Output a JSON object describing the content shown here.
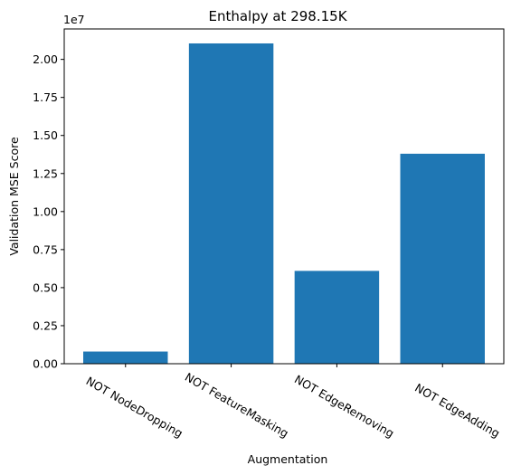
{
  "chart_data": {
    "type": "bar",
    "title": "Enthalpy at 298.15K",
    "xlabel": "Augmentation",
    "ylabel": "Validation MSE Score",
    "y_scale_label": "1e7",
    "categories": [
      "NOT NodeDropping",
      "NOT FeatureMasking",
      "NOT EdgeRemoving",
      "NOT EdgeAdding"
    ],
    "values": [
      0.08,
      2.105,
      0.61,
      1.38
    ],
    "value_unit_multiplier": 10000000,
    "ylim": [
      0,
      2.2
    ],
    "yticks": [
      "0.00",
      "0.25",
      "0.50",
      "0.75",
      "1.00",
      "1.25",
      "1.50",
      "1.75",
      "2.00"
    ],
    "ytick_values": [
      0,
      0.25,
      0.5,
      0.75,
      1.0,
      1.25,
      1.5,
      1.75,
      2.0
    ],
    "bar_color": "#1f77b4",
    "grid": false,
    "legend": false
  }
}
